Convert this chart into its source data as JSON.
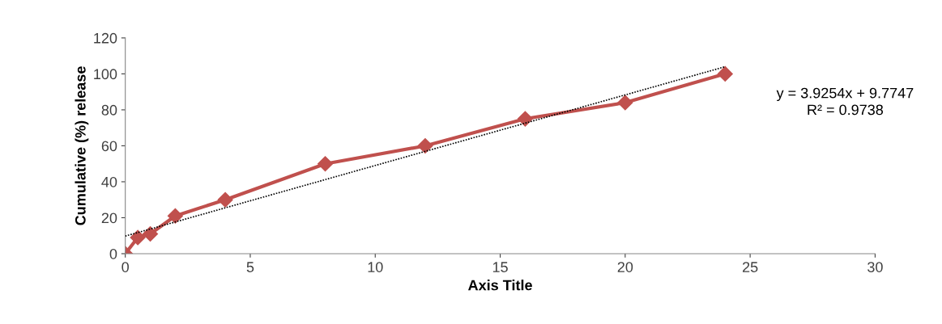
{
  "chart_data": {
    "type": "line",
    "xlabel": "Axis Title",
    "ylabel": "Cumulative (%) release",
    "x": [
      0,
      0.5,
      1,
      2,
      4,
      8,
      12,
      16,
      20,
      24
    ],
    "series": [
      {
        "color": "#c0504d",
        "marker": "diamond",
        "values": [
          0,
          9,
          11,
          21,
          30,
          50,
          60,
          75,
          84,
          100
        ]
      },
      {
        "color": "#000000",
        "marker": "none",
        "line_style": "dotted",
        "x": [
          0,
          24
        ],
        "values": [
          9.8,
          104
        ]
      }
    ],
    "xlim": [
      0,
      30
    ],
    "xticks": [
      0,
      5,
      10,
      15,
      20,
      25,
      30
    ],
    "ylim": [
      0,
      120
    ],
    "yticks": [
      0,
      20,
      40,
      60,
      80,
      100,
      120
    ],
    "grid": false,
    "legend": false,
    "annotations": [
      "y = 3.9254x + 9.7747\nR² = 0.9738"
    ]
  }
}
